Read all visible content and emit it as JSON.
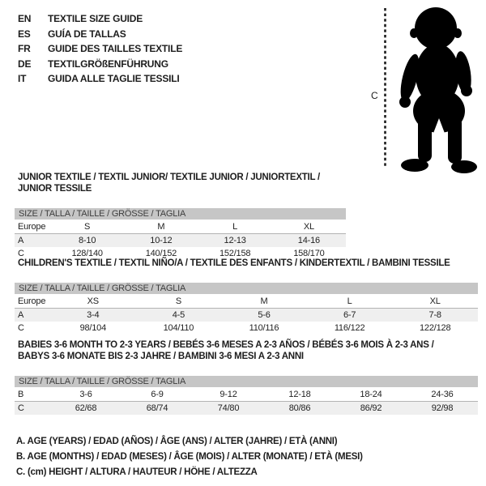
{
  "colors": {
    "bar_bg": "#c6c6c6",
    "row_shade": "#efefef",
    "silhouette": "#000000",
    "text": "#1d1d1d"
  },
  "languages": [
    {
      "code": "EN",
      "label": "TEXTILE SIZE GUIDE"
    },
    {
      "code": "ES",
      "label": "GUÍA DE TALLAS"
    },
    {
      "code": "FR",
      "label": "GUIDE DES TAILLES TEXTILE"
    },
    {
      "code": "DE",
      "label": "TEXTILGRÖßENFÜHRUNG"
    },
    {
      "code": "IT",
      "label": "GUIDA ALLE TAGLIE TESSILI"
    }
  ],
  "figure": {
    "label": "C"
  },
  "tables": [
    {
      "title": "JUNIOR TEXTILE / TEXTIL JUNIOR/ TEXTILE JUNIOR / JUNIORTEXTIL / JUNIOR TESSILE",
      "size_header": "SIZE / TALLA / TAILLE / GRÖSSE / TAGLIA",
      "rows": [
        {
          "label": "Europe",
          "values": [
            "S",
            "M",
            "L",
            "XL"
          ],
          "shaded": false
        },
        {
          "label": "A",
          "values": [
            "8-10",
            "10-12",
            "12-13",
            "14-16"
          ],
          "shaded": true
        },
        {
          "label": "C",
          "values": [
            "128/140",
            "140/152",
            "152/158",
            "158/170"
          ],
          "shaded": false
        }
      ]
    },
    {
      "title": "CHILDREN'S TEXTILE / TEXTIL NIÑO/A / TEXTILE DES ENFANTS / KINDERTEXTIL / BAMBINI TESSILE",
      "size_header": "SIZE / TALLA / TAILLE / GRÖSSE / TAGLIA",
      "rows": [
        {
          "label": "Europe",
          "values": [
            "XS",
            "S",
            "M",
            "L",
            "XL"
          ],
          "shaded": false
        },
        {
          "label": "A",
          "values": [
            "3-4",
            "4-5",
            "5-6",
            "6-7",
            "7-8"
          ],
          "shaded": true
        },
        {
          "label": "C",
          "values": [
            "98/104",
            "104/110",
            "110/116",
            "116/122",
            "122/128"
          ],
          "shaded": false
        }
      ]
    },
    {
      "title": "BABIES 3-6 MONTH TO 2-3 YEARS / BEBÉS 3-6 MESES A 2-3 AÑOS / BÉBÉS 3-6 MOIS À 2-3 ANS /\nBABYS 3-6 MONATE BIS 2-3 JAHRE / BAMBINI 3-6 MESI A 2-3 ANNI",
      "size_header": "SIZE / TALLA / TAILLE / GRÖSSE / TAGLIA",
      "rows": [
        {
          "label": "B",
          "values": [
            "3-6",
            "6-9",
            "9-12",
            "12-18",
            "18-24",
            "24-36"
          ],
          "shaded": false
        },
        {
          "label": "C",
          "values": [
            "62/68",
            "68/74",
            "74/80",
            "80/86",
            "86/92",
            "92/98"
          ],
          "shaded": true
        }
      ]
    }
  ],
  "notes": [
    "A. AGE (YEARS) / EDAD (AÑOS) / ÂGE (ANS) / ALTER (JAHRE) / ETÀ (ANNI)",
    "B. AGE (MONTHS) / EDAD (MESES) / ÂGE (MOIS) / ALTER (MONATE) / ETÀ (MESI)",
    "C. (cm) HEIGHT / ALTURA / HAUTEUR / HÖHE / ALTEZZA"
  ]
}
